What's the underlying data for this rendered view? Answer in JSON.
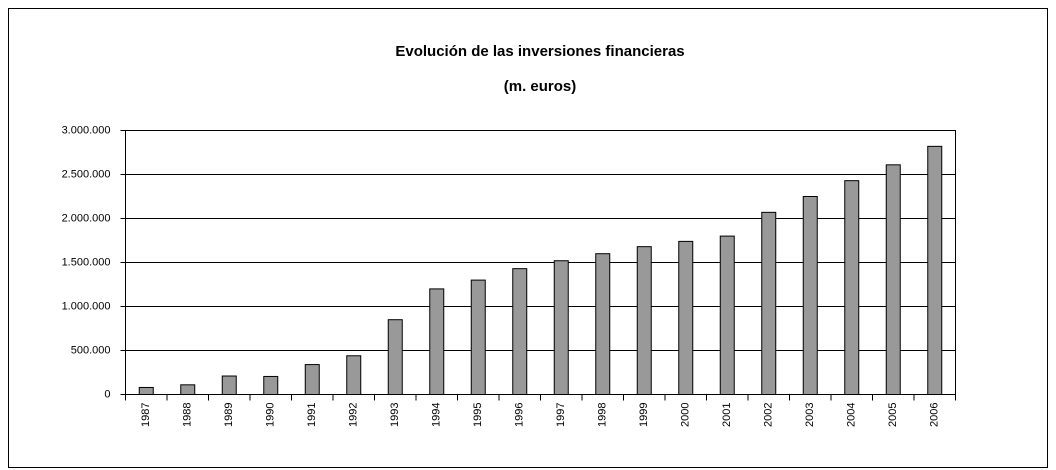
{
  "chart_data": {
    "type": "bar",
    "title": "Evolución de las inversiones financieras",
    "subtitle": "(m. euros)",
    "categories": [
      "1987",
      "1988",
      "1989",
      "1990",
      "1991",
      "1992",
      "1993",
      "1994",
      "1995",
      "1996",
      "1997",
      "1998",
      "1999",
      "2000",
      "2001",
      "2002",
      "2003",
      "2004",
      "2005",
      "2006"
    ],
    "values": [
      80000,
      110000,
      210000,
      205000,
      340000,
      440000,
      850000,
      1200000,
      1300000,
      1430000,
      1520000,
      1600000,
      1680000,
      1740000,
      1800000,
      2070000,
      2250000,
      2430000,
      2610000,
      2820000
    ],
    "color": "#999999",
    "ylim": [
      0,
      3000000
    ],
    "yticks": [
      0,
      {
        "value": 500000,
        "label": "500.000"
      },
      {
        "value": 1000000,
        "label": "1.000.000"
      },
      {
        "value": 1500000,
        "label": "1.500.000"
      },
      {
        "value": 2000000,
        "label": "2.000.000"
      },
      {
        "value": 2500000,
        "label": "2.500.000"
      },
      {
        "value": 3000000,
        "label": "3.000.000"
      }
    ],
    "grid": true
  }
}
